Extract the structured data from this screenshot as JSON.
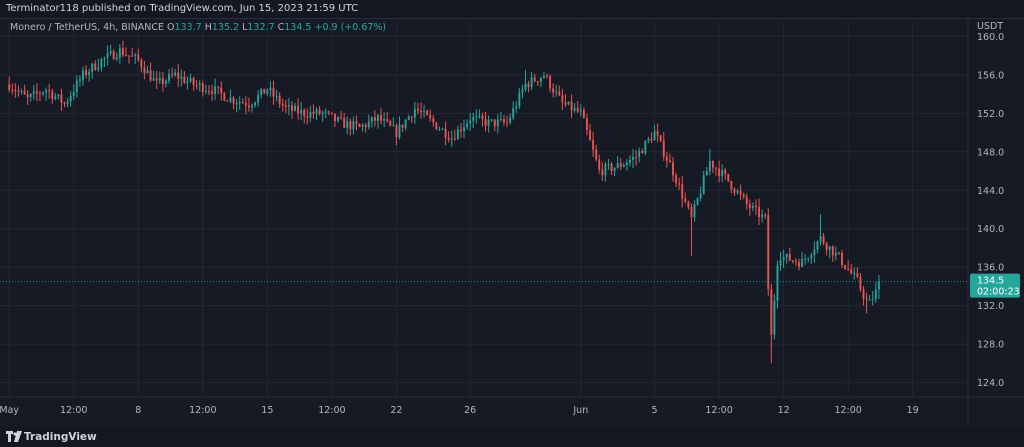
{
  "header": {
    "published": "Terminator118 published on TradingView.com, Jun 15, 2023 21:59 UTC"
  },
  "legend": {
    "symbol": "Monero / TetherUS, 4h, BINANCE",
    "o_label": "O",
    "o": "133.7",
    "h_label": "H",
    "h": "135.2",
    "l_label": "L",
    "l": "132.7",
    "c_label": "C",
    "c": "134.5",
    "change": "+0.9 (+0.67%)"
  },
  "footer": {
    "brand": "TradingView"
  },
  "chart_data": {
    "type": "candlestick",
    "currency": "USDT",
    "y_ticks": [
      160.0,
      156.0,
      152.0,
      148.0,
      144.0,
      140.0,
      136.0,
      132.0,
      128.0,
      124.0
    ],
    "ylim": [
      122.5,
      161.5
    ],
    "x_ticks": [
      {
        "label": "May",
        "day": 0
      },
      {
        "label": "12:00",
        "day": 3.5
      },
      {
        "label": "8",
        "day": 7
      },
      {
        "label": "12:00",
        "day": 10.5
      },
      {
        "label": "15",
        "day": 14
      },
      {
        "label": "12:00",
        "day": 17.5
      },
      {
        "label": "22",
        "day": 21
      },
      {
        "label": "26",
        "day": 25
      },
      {
        "label": "Jun",
        "day": 31
      },
      {
        "label": "5",
        "day": 35
      },
      {
        "label": "12:00",
        "day": 38.5
      },
      {
        "label": "12",
        "day": 42
      },
      {
        "label": "12:00",
        "day": 45.5
      },
      {
        "label": "19",
        "day": 49
      }
    ],
    "xlim": [
      -0.5,
      52
    ],
    "price_line": 134.5,
    "last_price_label": "134.5",
    "countdown_label": "02:00:23",
    "colors": {
      "up": "#26a69a",
      "down": "#ef5350",
      "grid": "#232733",
      "axis_text": "#b2b5be"
    },
    "close_path": [
      [
        0,
        155.0
      ],
      [
        1,
        153.5
      ],
      [
        2,
        154.5
      ],
      [
        3,
        153.0
      ],
      [
        4,
        156.0
      ],
      [
        5,
        157.5
      ],
      [
        6,
        158.5
      ],
      [
        7,
        157.5
      ],
      [
        8,
        155.0
      ],
      [
        9,
        156.0
      ],
      [
        10,
        155.0
      ],
      [
        11,
        154.5
      ],
      [
        12,
        153.5
      ],
      [
        13,
        153.0
      ],
      [
        14,
        154.5
      ],
      [
        15,
        152.5
      ],
      [
        16,
        152.0
      ],
      [
        17,
        152.0
      ],
      [
        18,
        151.0
      ],
      [
        19,
        150.5
      ],
      [
        20,
        151.5
      ],
      [
        21,
        150.0
      ],
      [
        22,
        152.5
      ],
      [
        23,
        151.0
      ],
      [
        24,
        149.5
      ],
      [
        25,
        151.5
      ],
      [
        26,
        151.0
      ],
      [
        27,
        151.0
      ],
      [
        28,
        155.0
      ],
      [
        29,
        156.0
      ],
      [
        30,
        153.0
      ],
      [
        31,
        152.0
      ],
      [
        32,
        146.0
      ],
      [
        33,
        146.5
      ],
      [
        34,
        147.5
      ],
      [
        35,
        150.0
      ],
      [
        36,
        146.0
      ],
      [
        37,
        141.0
      ],
      [
        38,
        147.0
      ],
      [
        39,
        145.0
      ],
      [
        40,
        142.5
      ],
      [
        41,
        141.0
      ],
      [
        41.3,
        128.0
      ],
      [
        41.7,
        137.5
      ],
      [
        42,
        137.0
      ],
      [
        43,
        136.5
      ],
      [
        44,
        139.0
      ],
      [
        45,
        137.0
      ],
      [
        46,
        134.5
      ],
      [
        46.6,
        132.0
      ],
      [
        47.3,
        134.5
      ]
    ],
    "high_wick_markers": [
      [
        6,
        158.9
      ],
      [
        14,
        154.6
      ],
      [
        28,
        156.5
      ],
      [
        35,
        150.3
      ],
      [
        38,
        148.3
      ],
      [
        44,
        141.5
      ]
    ],
    "low_wick_markers": [
      [
        37,
        137.2
      ],
      [
        41.3,
        126.0
      ],
      [
        46.5,
        131.2
      ]
    ]
  }
}
